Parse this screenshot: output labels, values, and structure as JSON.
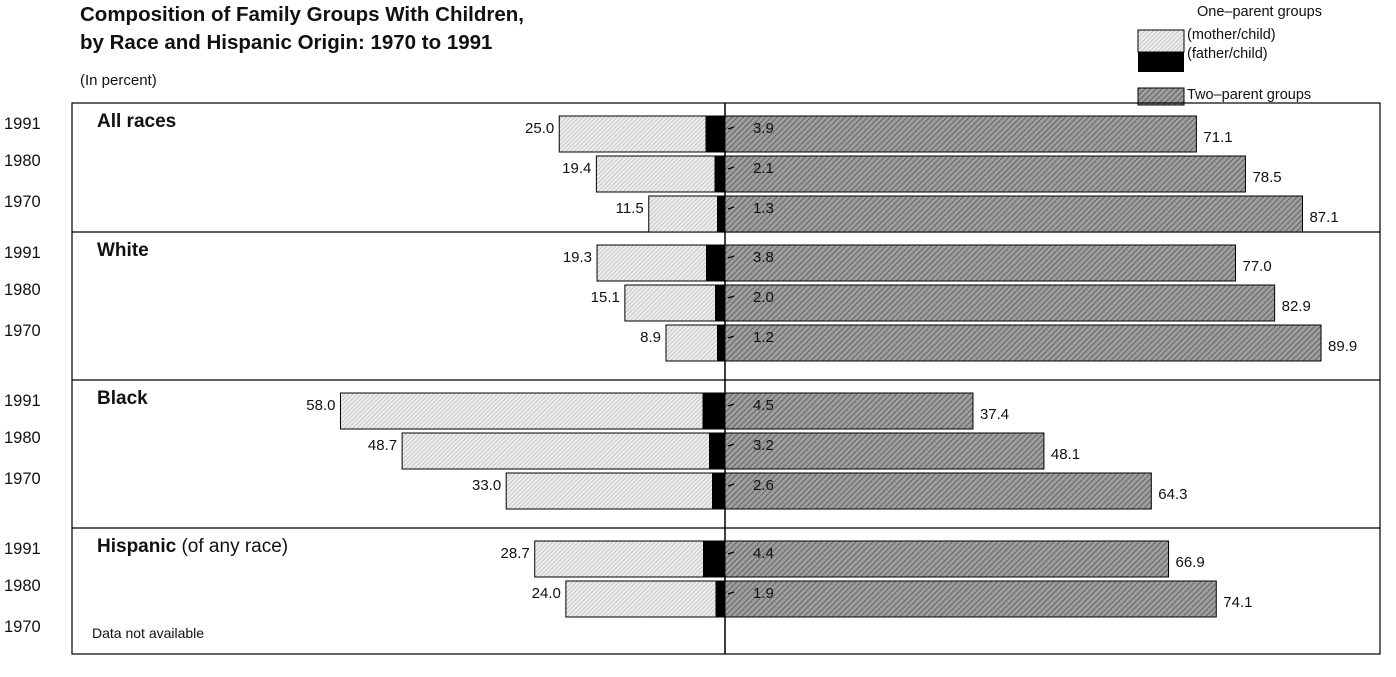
{
  "chart_data": {
    "type": "bar",
    "title_line1": "Composition of Family Groups With Children,",
    "title_line2": "by Race and Hispanic Origin:  1970 to 1991",
    "subtitle": "(In percent)",
    "legend": {
      "one_parent_heading": "One–parent groups",
      "mother_label": "(mother/child)",
      "father_label": "(father/child)",
      "two_parent_label": "Two–parent groups"
    },
    "series": [
      {
        "key": "mother",
        "name": "(mother/child)",
        "color": "#d9d9d9"
      },
      {
        "key": "father",
        "name": "(father/child)",
        "color": "#000000"
      },
      {
        "key": "two",
        "name": "Two–parent groups",
        "color": "#9e9e9e"
      }
    ],
    "groups": [
      {
        "name": "All races",
        "suffix": "",
        "rows": [
          {
            "year": "1991",
            "mother": 25.0,
            "father": 3.9,
            "two": 71.1
          },
          {
            "year": "1980",
            "mother": 19.4,
            "father": 2.1,
            "two": 78.5
          },
          {
            "year": "1970",
            "mother": 11.5,
            "father": 1.3,
            "two": 87.1
          }
        ]
      },
      {
        "name": "White",
        "suffix": "",
        "rows": [
          {
            "year": "1991",
            "mother": 19.3,
            "father": 3.8,
            "two": 77.0
          },
          {
            "year": "1980",
            "mother": 15.1,
            "father": 2.0,
            "two": 82.9
          },
          {
            "year": "1970",
            "mother": 8.9,
            "father": 1.2,
            "two": 89.9
          }
        ]
      },
      {
        "name": "Black",
        "suffix": "",
        "rows": [
          {
            "year": "1991",
            "mother": 58.0,
            "father": 4.5,
            "two": 37.4
          },
          {
            "year": "1980",
            "mother": 48.7,
            "father": 3.2,
            "two": 48.1
          },
          {
            "year": "1970",
            "mother": 33.0,
            "father": 2.6,
            "two": 64.3
          }
        ]
      },
      {
        "name": "Hispanic",
        "suffix": " (of any race)",
        "rows": [
          {
            "year": "1991",
            "mother": 28.7,
            "father": 4.4,
            "two": 66.9
          },
          {
            "year": "1980",
            "mother": 24.0,
            "father": 1.9,
            "two": 74.1
          },
          {
            "year": "1970",
            "mother": null,
            "father": null,
            "two": null,
            "note": "Data not available"
          }
        ]
      }
    ]
  }
}
